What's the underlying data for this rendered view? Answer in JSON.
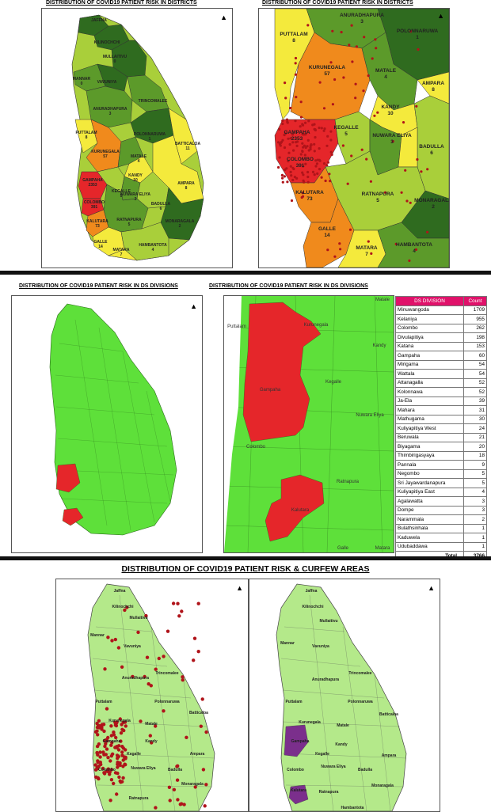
{
  "section1": {
    "left_title": "DISTRIBUTION OF COVID19 PATIENT RISK  IN DISTRICTS",
    "right_title": "DISTRIBUTION OF COVID19 PATIENT RISK  IN DISTRICTS",
    "left_labels": [
      {
        "name": "JAFFNA",
        "value": ""
      },
      {
        "name": "KILINOCHCHI",
        "value": ""
      },
      {
        "name": "MULLAITIVU",
        "value": "0"
      },
      {
        "name": "MANNAR",
        "value": "0"
      },
      {
        "name": "VAVUNIYA",
        "value": ""
      },
      {
        "name": "TRINCOMALEE",
        "value": ""
      },
      {
        "name": "ANURADHAPURA",
        "value": "3"
      },
      {
        "name": "PUTTALAM",
        "value": "8"
      },
      {
        "name": "POLONNARUWA",
        "value": "1"
      },
      {
        "name": "BATTICALOA",
        "value": "11"
      },
      {
        "name": "KURUNEGALA",
        "value": "57"
      },
      {
        "name": "MATALE",
        "value": "4"
      },
      {
        "name": "KANDY",
        "value": "10"
      },
      {
        "name": "AMPARA",
        "value": "8"
      },
      {
        "name": "GAMPAHA",
        "value": "2353"
      },
      {
        "name": "KEGALLE",
        "value": "5"
      },
      {
        "name": "NUWARA ELIYA",
        "value": "3"
      },
      {
        "name": "BADULLA",
        "value": "6"
      },
      {
        "name": "COLOMBO",
        "value": "391"
      },
      {
        "name": "KALUTARA",
        "value": "73"
      },
      {
        "name": "RATNAPURA",
        "value": "5"
      },
      {
        "name": "MONARAGALA",
        "value": "2"
      },
      {
        "name": "GALLE",
        "value": "14"
      },
      {
        "name": "HAMBANTOTA",
        "value": "4"
      },
      {
        "name": "MATARA",
        "value": "7"
      }
    ],
    "right_labels": [
      {
        "name": "ANURADHAPURA",
        "value": "3"
      },
      {
        "name": "PUTTALAM",
        "value": "8"
      },
      {
        "name": "POLONNARUWA",
        "value": "1"
      },
      {
        "name": "KURUNEGALA",
        "value": "57"
      },
      {
        "name": "MATALE",
        "value": "4"
      },
      {
        "name": "AMPARA",
        "value": "8"
      },
      {
        "name": "KANDY",
        "value": "10"
      },
      {
        "name": "GAMPAHA",
        "value": "2353"
      },
      {
        "name": "KEGALLE",
        "value": "5"
      },
      {
        "name": "NUWARA ELIYA",
        "value": "3"
      },
      {
        "name": "BADULLA",
        "value": "6"
      },
      {
        "name": "COLOMBO",
        "value": "391"
      },
      {
        "name": "KALUTARA",
        "value": "73"
      },
      {
        "name": "RATNAPURA",
        "value": "5"
      },
      {
        "name": "MONARAGALA",
        "value": "2"
      },
      {
        "name": "GALLE",
        "value": "14"
      },
      {
        "name": "MATARA",
        "value": "7"
      },
      {
        "name": "HAMBANTOTA",
        "value": "4"
      }
    ]
  },
  "section2": {
    "left_title": "DISTRIBUTION OF COVID19 PATIENT RISK  IN DS DIVISIONS",
    "right_title": "DISTRIBUTION OF COVID19 PATIENT RISK  IN DS DIVISIONS",
    "zoom_labels": [
      "Matale",
      "Puttalam",
      "Kurunegala",
      "Kandy",
      "Gampaha",
      "Kegalle",
      "Nuwara Eliya",
      "Colombo",
      "Ratnapura",
      "Kalutara",
      "Galle",
      "Matara"
    ],
    "table": {
      "header": [
        "DS DIVISION",
        "Count"
      ],
      "rows": [
        [
          "Minuwangoda",
          "1709"
        ],
        [
          "Kelaniya",
          "955"
        ],
        [
          "Colombo",
          "262"
        ],
        [
          "Divulapitiya",
          "198"
        ],
        [
          "Katana",
          "153"
        ],
        [
          "Gampaha",
          "60"
        ],
        [
          "Mirigama",
          "54"
        ],
        [
          "Wattala",
          "54"
        ],
        [
          "Attanagalla",
          "52"
        ],
        [
          "Kolonnawa",
          "52"
        ],
        [
          "Ja-Ela",
          "39"
        ],
        [
          "Mahara",
          "31"
        ],
        [
          "Mathugama",
          "30"
        ],
        [
          "Kuliyapitiya West",
          "24"
        ],
        [
          "Beruwala",
          "21"
        ],
        [
          "Biyagama",
          "20"
        ],
        [
          "Thimbirigasyaya",
          "18"
        ],
        [
          "Pannala",
          "9"
        ],
        [
          "Negombo",
          "5"
        ],
        [
          "Sri Jayawardanapura",
          "5"
        ],
        [
          "Kuliyapitiya East",
          "4"
        ],
        [
          "Agalawatta",
          "3"
        ],
        [
          "Dompe",
          "3"
        ],
        [
          "Narammala",
          "2"
        ],
        [
          "Bulathsinhala",
          "1"
        ],
        [
          "Kaduwela",
          "1"
        ],
        [
          "Udubaddawa",
          "1"
        ]
      ],
      "total_label": "Total",
      "total_value": "3766"
    }
  },
  "section3": {
    "title": "DISTRIBUTION OF COVID19 PATIENT RISK  & CURFEW AREAS",
    "left_labels": [
      "Jaffna",
      "Kilinochchi",
      "Mullaitivu",
      "Mannar",
      "Vavuniya",
      "Trincomalee",
      "Anuradhapura",
      "Puttalam",
      "Polonnaruwa",
      "Batticaloa",
      "Kurunegala",
      "Matale",
      "Kandy",
      "Ampara",
      "Gampaha",
      "Kegalle",
      "Nuwara Eliya",
      "Badulla",
      "Colombo",
      "Monaragala",
      "Ratnapura"
    ],
    "right_labels": [
      "Jaffna",
      "Kilinochchi",
      "Mullaitivu",
      "Mannar",
      "Vavuniya",
      "Trincomalee",
      "Anuradhapura",
      "Puttalam",
      "Polonnaruwa",
      "Batticaloa",
      "Kurunegala",
      "Matale",
      "Kandy",
      "Ampara",
      "Gampaha",
      "Kegalle",
      "Nuwara Eliya",
      "Badulla",
      "Colombo",
      "Monaragala",
      "Kalutara",
      "Ratnapura",
      "Hambantota"
    ]
  },
  "north_arrow": "▲",
  "colors": {
    "dark_green": "#2f6b1f",
    "green": "#5c9a2a",
    "light_green": "#a9cf3a",
    "yellow": "#f4ea3c",
    "orange": "#f08a1c",
    "red": "#e5262a",
    "ds_green": "#5ee03a",
    "curfew_green": "#b4e98a",
    "curfew_purple": "#7b2f8c",
    "dot": "#b0141a"
  }
}
